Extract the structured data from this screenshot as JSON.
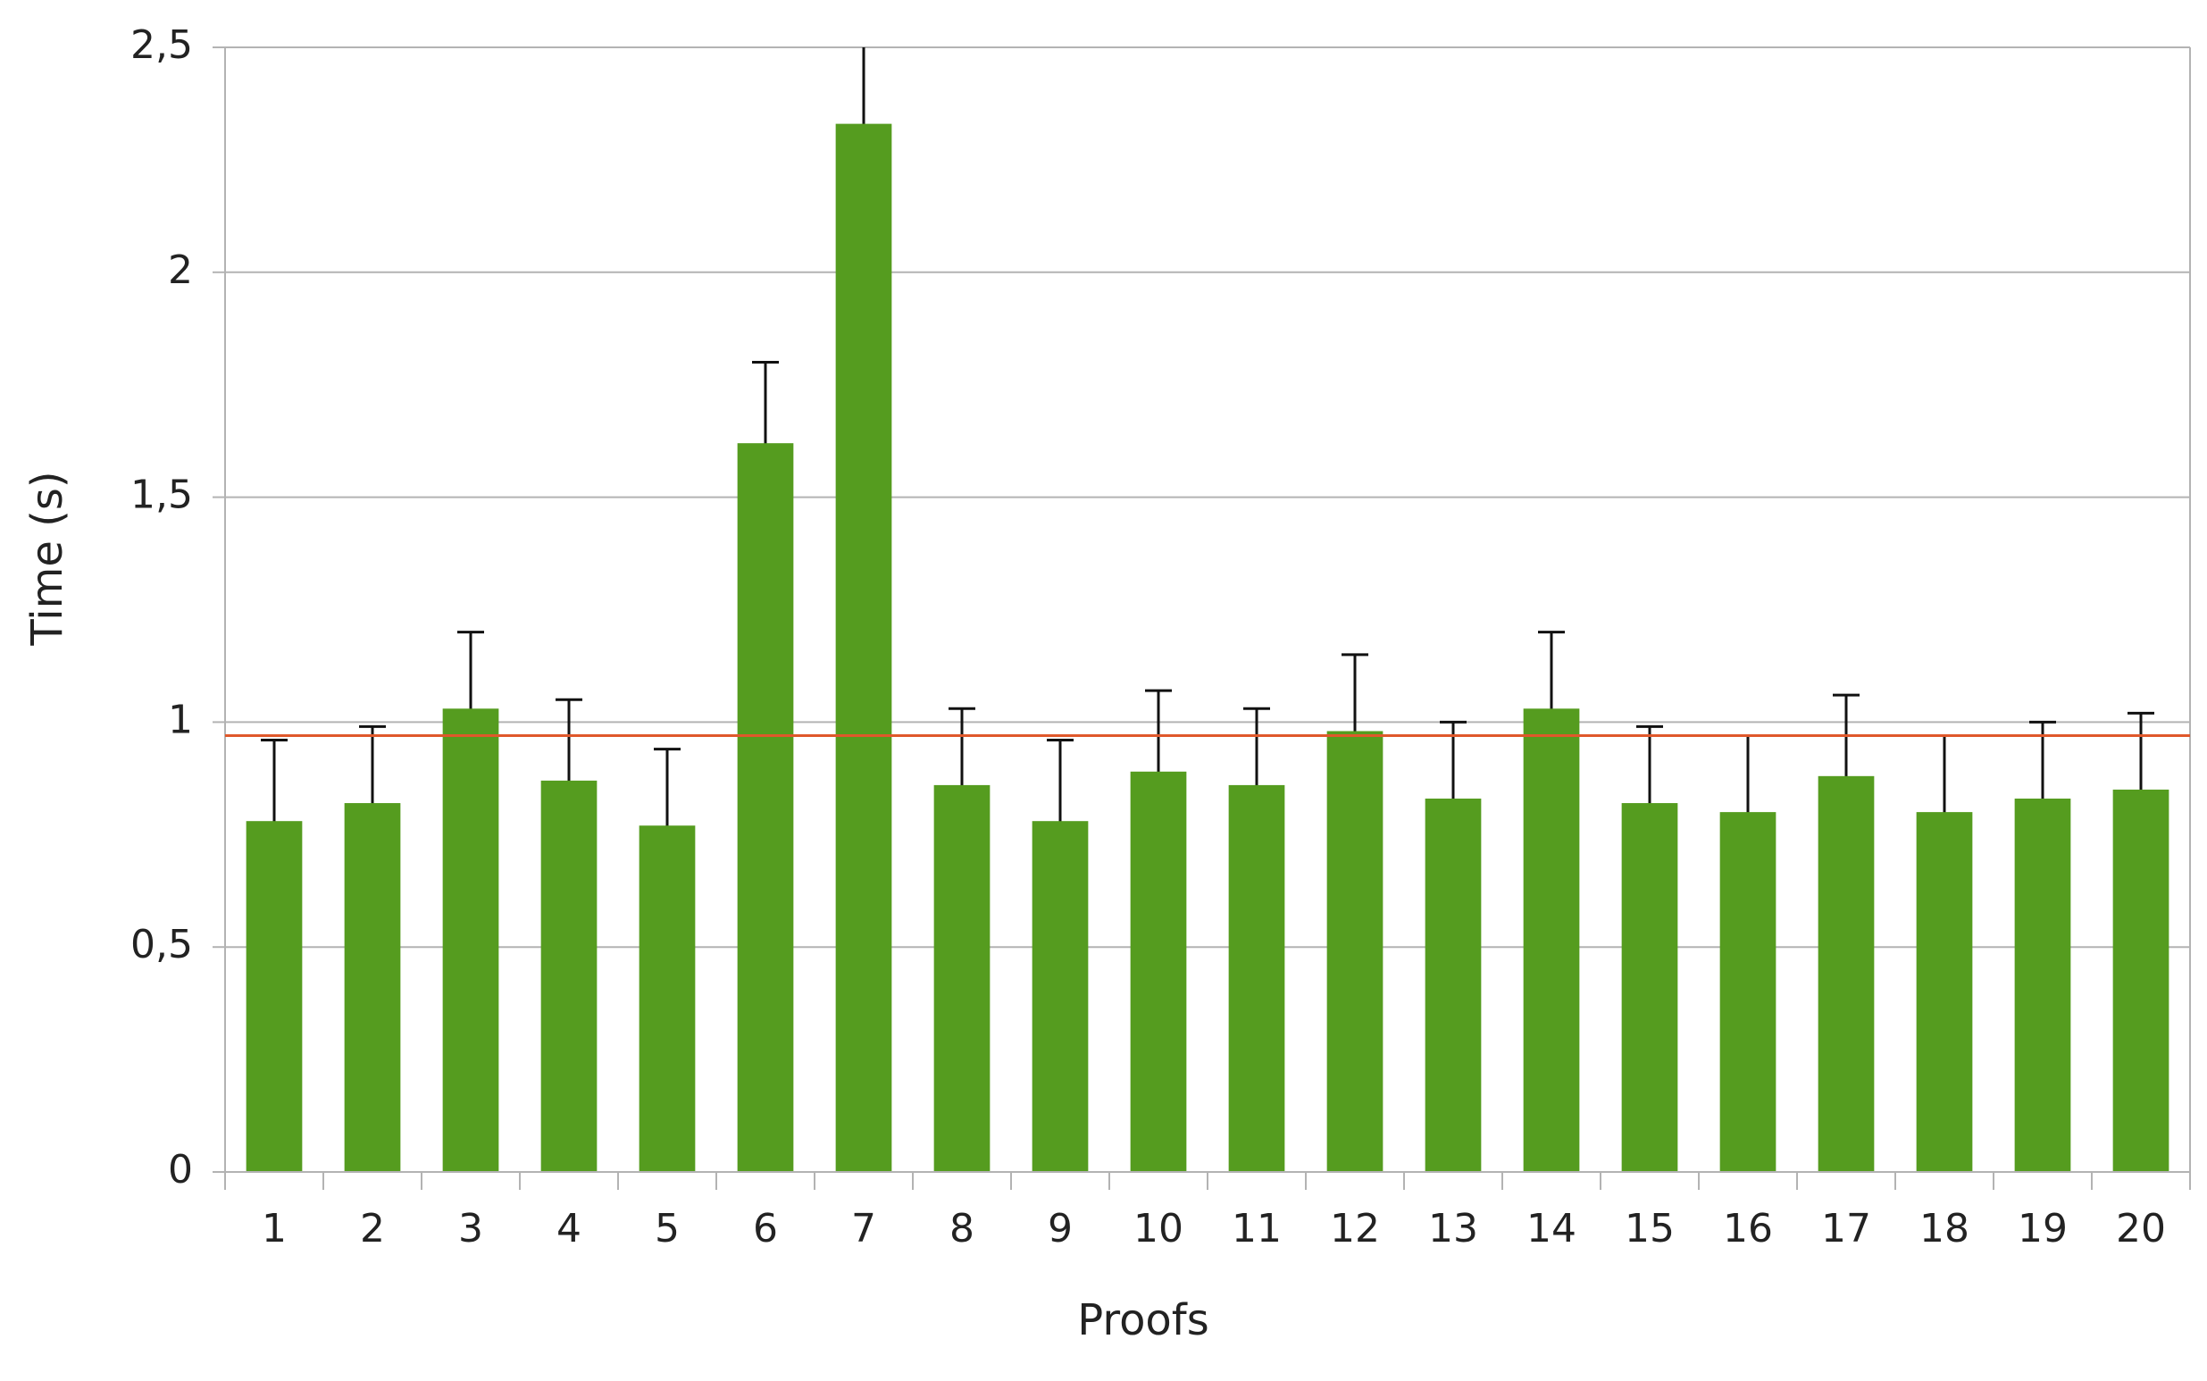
{
  "chart_data": {
    "type": "bar",
    "x_label": "Proofs",
    "y_label": "Time (s)",
    "categories": [
      "1",
      "2",
      "3",
      "4",
      "5",
      "6",
      "7",
      "8",
      "9",
      "10",
      "11",
      "12",
      "13",
      "14",
      "15",
      "16",
      "17",
      "18",
      "19",
      "20"
    ],
    "values": [
      0.78,
      0.82,
      1.03,
      0.87,
      0.77,
      1.62,
      2.33,
      0.86,
      0.78,
      0.89,
      0.86,
      0.98,
      0.83,
      1.03,
      0.82,
      0.8,
      0.88,
      0.8,
      0.83,
      0.85
    ],
    "errors": [
      0.18,
      0.17,
      0.17,
      0.18,
      0.17,
      0.18,
      0.18,
      0.17,
      0.18,
      0.18,
      0.17,
      0.17,
      0.17,
      0.17,
      0.17,
      0.17,
      0.18,
      0.17,
      0.17,
      0.17
    ],
    "color": "#559c1f",
    "error_color": "#111111",
    "reference_line": 0.97,
    "reference_color": "#e0582b",
    "ylim": [
      0,
      2.5
    ],
    "yticks": [
      0,
      {
        "value": 0.5,
        "label": "0,5"
      },
      1,
      {
        "value": 1.5,
        "label": "1,5"
      },
      2,
      {
        "value": 2.5,
        "label": "2,5"
      }
    ],
    "grid": true
  }
}
